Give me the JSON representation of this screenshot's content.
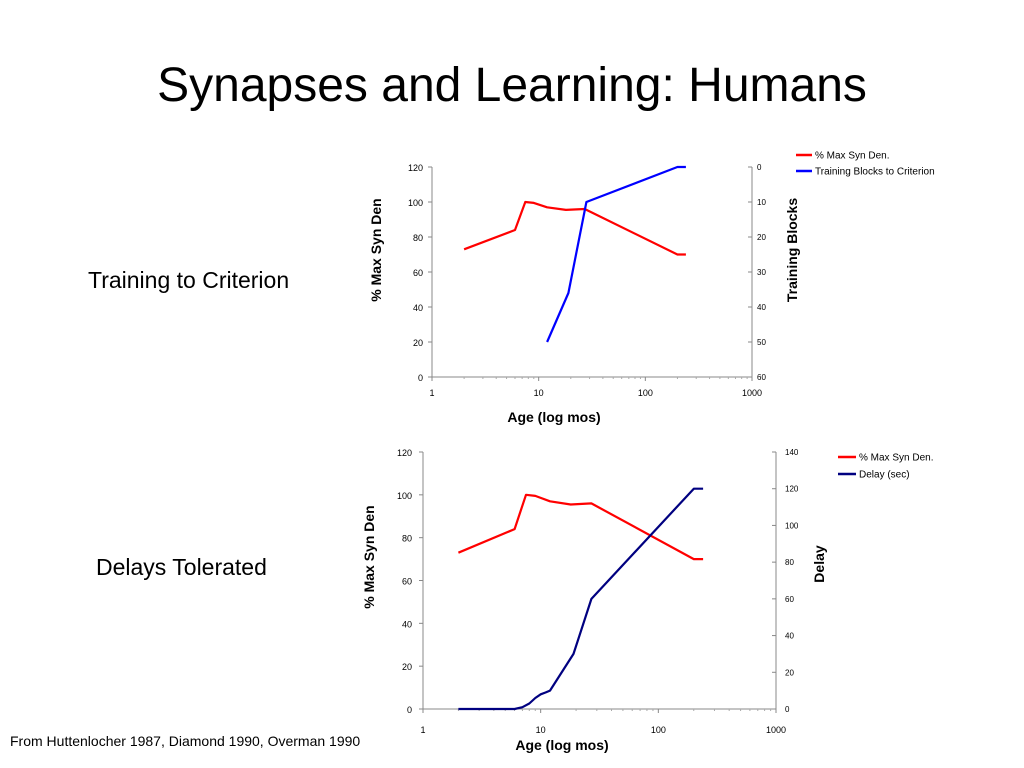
{
  "slide": {
    "title": "Synapses and Learning: Humans",
    "left_labels": [
      "Training to Criterion",
      "Delays Tolerated"
    ],
    "footnote": "From Huttenlocher 1987, Diamond 1990, Overman 1990"
  },
  "chart_data": [
    {
      "type": "line",
      "xlabel": "Age (log mos)",
      "ylabel": "% Max Syn Den",
      "y2label": "Training Blocks",
      "xscale": "log",
      "xlim": [
        1,
        1000
      ],
      "xticks": [
        "1",
        "10",
        "100",
        "1000"
      ],
      "ylim": [
        0,
        120
      ],
      "yticks": [
        "0",
        "20",
        "40",
        "60",
        "80",
        "100",
        "120"
      ],
      "y2lim": [
        0,
        60
      ],
      "y2_inverted": true,
      "y2ticks": [
        "0",
        "10",
        "20",
        "30",
        "40",
        "50",
        "60"
      ],
      "legend_position": "top-right",
      "series": [
        {
          "name": "% Max Syn Den.",
          "axis": "left",
          "color": "#ff0000",
          "points": [
            [
              2,
              73
            ],
            [
              6,
              84
            ],
            [
              7.5,
              100
            ],
            [
              9,
              99.5
            ],
            [
              12,
              97
            ],
            [
              18,
              95.5
            ],
            [
              27,
              96
            ],
            [
              200,
              70
            ],
            [
              240,
              70
            ]
          ]
        },
        {
          "name": "Training Blocks to Criterion",
          "axis": "right",
          "color": "#0000ff",
          "points": [
            [
              12,
              50
            ],
            [
              19,
              36
            ],
            [
              28,
              10
            ],
            [
              200,
              0
            ],
            [
              240,
              0
            ]
          ]
        }
      ]
    },
    {
      "type": "line",
      "xlabel": "Age (log mos)",
      "ylabel": "% Max Syn Den",
      "y2label": "Delay",
      "xscale": "log",
      "xlim": [
        1,
        1000
      ],
      "xticks": [
        "1",
        "10",
        "100",
        "1000"
      ],
      "ylim": [
        0,
        120
      ],
      "yticks": [
        "0",
        "20",
        "40",
        "60",
        "80",
        "100",
        "120"
      ],
      "y2lim": [
        0,
        140
      ],
      "y2ticks": [
        "0",
        "20",
        "40",
        "60",
        "80",
        "100",
        "120",
        "140"
      ],
      "legend_position": "top-right",
      "series": [
        {
          "name": "% Max Syn Den.",
          "axis": "left",
          "color": "#ff0000",
          "points": [
            [
              2,
              73
            ],
            [
              6,
              84
            ],
            [
              7.5,
              100
            ],
            [
              9,
              99.5
            ],
            [
              12,
              97
            ],
            [
              18,
              95.5
            ],
            [
              27,
              96
            ],
            [
              200,
              70
            ],
            [
              240,
              70
            ]
          ]
        },
        {
          "name": "Delay (sec)",
          "axis": "right",
          "color": "#000080",
          "points": [
            [
              2,
              0
            ],
            [
              6,
              0
            ],
            [
              7,
              1
            ],
            [
              8,
              3
            ],
            [
              9,
              6
            ],
            [
              10,
              8
            ],
            [
              11,
              9
            ],
            [
              12,
              10
            ],
            [
              19,
              30
            ],
            [
              27,
              60
            ],
            [
              200,
              120
            ],
            [
              240,
              120
            ]
          ]
        }
      ]
    }
  ]
}
